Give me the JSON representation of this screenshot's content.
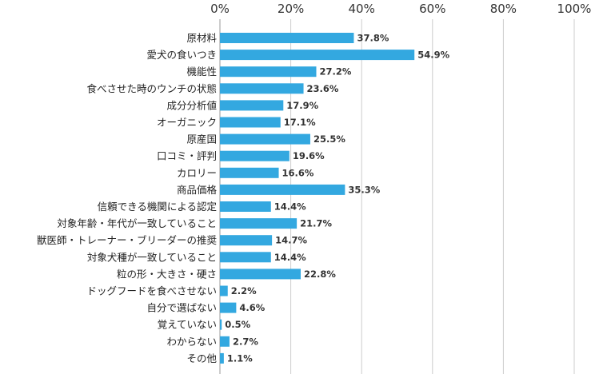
{
  "chart_data": {
    "type": "bar",
    "orientation": "horizontal",
    "categories": [
      "原材料",
      "愛犬の食いつき",
      "機能性",
      "食べさせた時のウンチの状態",
      "成分分析値",
      "オーガニック",
      "原産国",
      "口コミ・評判",
      "カロリー",
      "商品価格",
      "信頼できる機関による認定",
      "対象年齢・年代が一致していること",
      "獣医師・トレーナー・ブリーダーの推奨",
      "対象犬種が一致していること",
      "粒の形・大きさ・硬さ",
      "ドッグフードを食べさせない",
      "自分で選ばない",
      "覚えていない",
      "わからない",
      "その他"
    ],
    "values": [
      37.8,
      54.9,
      27.2,
      23.6,
      17.9,
      17.1,
      25.5,
      19.6,
      16.6,
      35.3,
      14.4,
      21.7,
      14.7,
      14.4,
      22.8,
      2.2,
      4.6,
      0.5,
      2.7,
      1.1
    ],
    "value_labels": [
      "37.8%",
      "54.9%",
      "27.2%",
      "23.6%",
      "17.9%",
      "17.1%",
      "25.5%",
      "19.6%",
      "16.6%",
      "35.3%",
      "14.4%",
      "21.7%",
      "14.7%",
      "14.4%",
      "22.8%",
      "2.2%",
      "4.6%",
      "0.5%",
      "2.7%",
      "1.1%"
    ],
    "x_ticks": [
      "0%",
      "20%",
      "40%",
      "60%",
      "80%",
      "100%"
    ],
    "xlim": [
      0,
      100
    ],
    "axis_position": "top",
    "grid": true,
    "legend": "none",
    "bar_color": "#33A8E0"
  }
}
